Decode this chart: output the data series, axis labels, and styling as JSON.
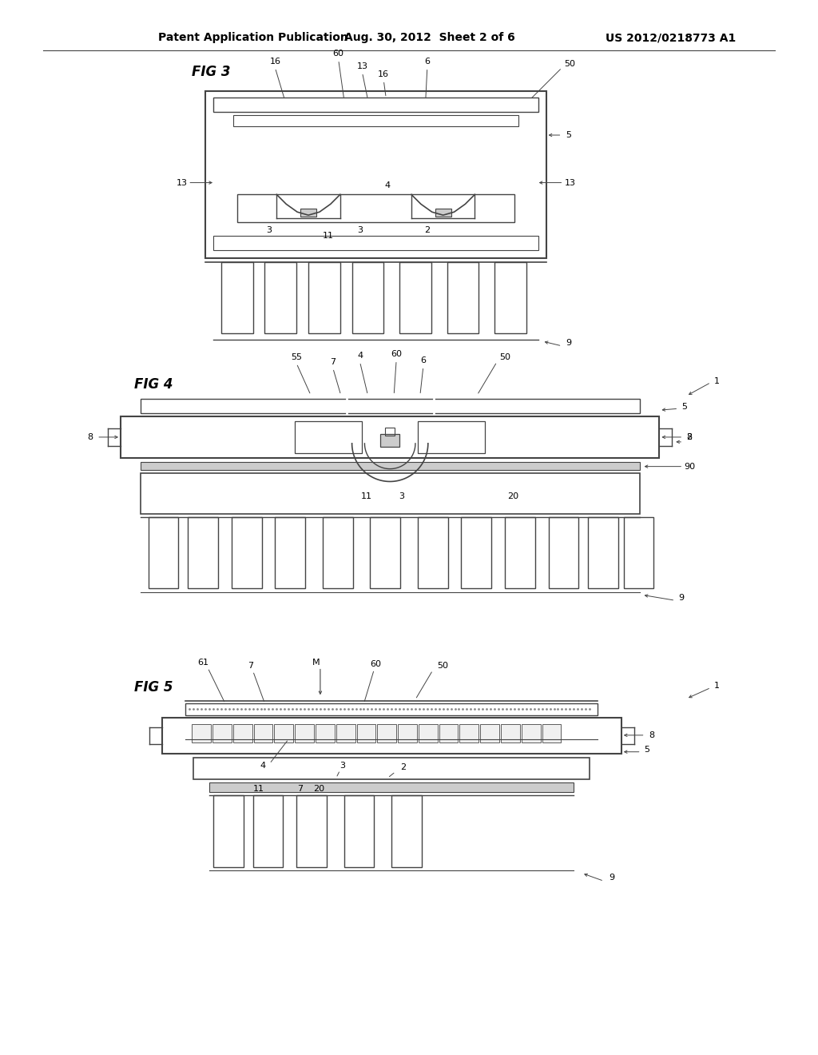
{
  "background_color": "#ffffff",
  "header_left": "Patent Application Publication",
  "header_mid": "Aug. 30, 2012  Sheet 2 of 6",
  "header_right": "US 2012/0218773 A1",
  "fig3_label": "FIG 3",
  "fig4_label": "FIG 4",
  "fig5_label": "FIG 5",
  "line_color": "#444444",
  "text_color": "#000000"
}
